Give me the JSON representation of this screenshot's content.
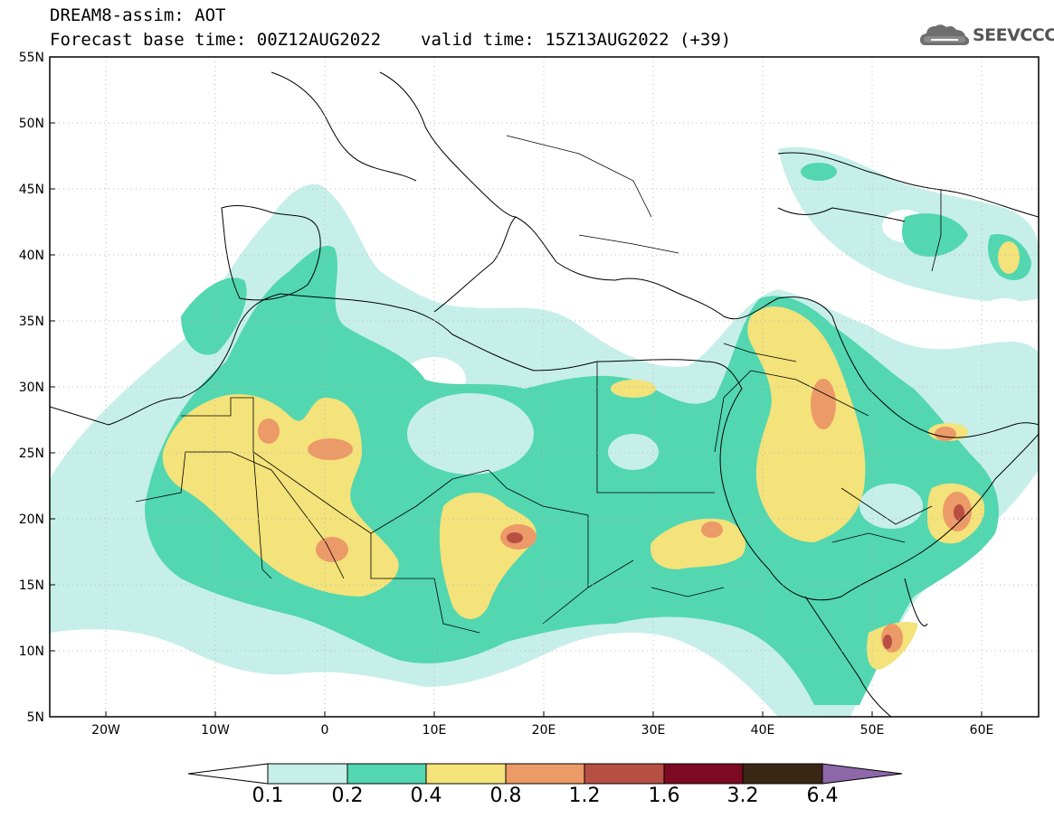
{
  "title": {
    "line1": "DREAM8-assim: AOT",
    "base_time": "Forecast base time: 00Z12AUG2022",
    "valid_time": "valid time: 15Z13AUG2022 (+39)"
  },
  "logo": {
    "text": "SEEVCCC",
    "icon": "cloud-icon"
  },
  "axes": {
    "lat_ticks": [
      "55N",
      "50N",
      "45N",
      "40N",
      "35N",
      "30N",
      "25N",
      "20N",
      "15N",
      "10N",
      "5N"
    ],
    "lon_ticks": [
      "20W",
      "10W",
      "0",
      "10E",
      "20E",
      "30E",
      "40E",
      "50E",
      "60E"
    ],
    "lat_range": [
      5,
      55
    ],
    "lon_range": [
      -25,
      65
    ]
  },
  "colorbar": {
    "labels": [
      "0.1",
      "0.2",
      "0.4",
      "0.8",
      "1.2",
      "1.6",
      "3.2",
      "6.4"
    ],
    "colors": [
      "#ffffff",
      "#c6efe9",
      "#52d7b0",
      "#f4e27a",
      "#ec9a68",
      "#b84f43",
      "#7d0a22",
      "#3b2715",
      "#8e68a8"
    ]
  }
}
